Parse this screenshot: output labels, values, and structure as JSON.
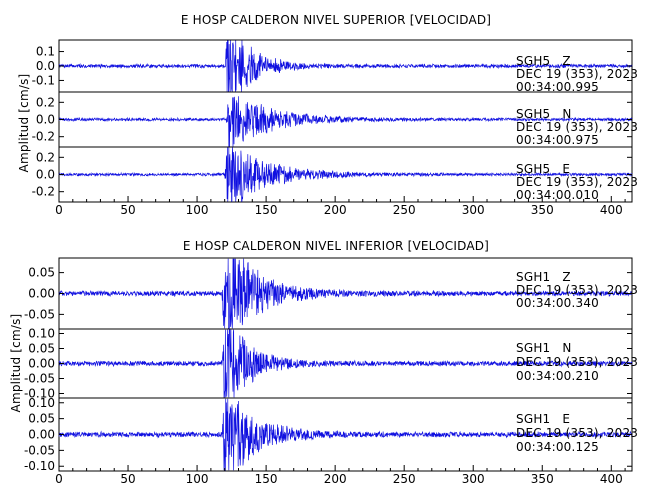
{
  "chart_data": [
    {
      "type": "line",
      "title": "E HOSP CALDERON NIVEL SUPERIOR [VELOCIDAD]",
      "ylabel": "Amplitud [cm/s]",
      "xlim": [
        0,
        415
      ],
      "xticks": [
        "0",
        "50",
        "100",
        "150",
        "200",
        "250",
        "300",
        "350",
        "400"
      ],
      "series": [
        {
          "name": "SGH5 Z",
          "station": "SGH5",
          "channel": "Z",
          "date": "DEC 19 (353), 2023",
          "time": "00:34:00.995",
          "ylim": [
            -0.18,
            0.18
          ],
          "yticks": [
            "0.1",
            "0.0",
            "-0.1"
          ],
          "ytick_values": [
            0.1,
            0.0,
            -0.1
          ],
          "arrival": 120,
          "peak": 0.17,
          "noise": 0.006,
          "decay": 18
        },
        {
          "name": "SGH5 N",
          "station": "SGH5",
          "channel": "N",
          "date": "DEC 19 (353), 2023",
          "time": "00:34:00.975",
          "ylim": [
            -0.32,
            0.32
          ],
          "yticks": [
            "0.2",
            "0.0",
            "-0.2"
          ],
          "ytick_values": [
            0.2,
            0.0,
            -0.2
          ],
          "arrival": 121,
          "peak": 0.2,
          "noise": 0.008,
          "decay": 30
        },
        {
          "name": "SGH5 E",
          "station": "SGH5",
          "channel": "E",
          "date": "DEC 19 (353), 2023",
          "time": "00:34:00.010",
          "ylim": [
            -0.32,
            0.32
          ],
          "yticks": [
            "0.2",
            "0.0",
            "-0.2"
          ],
          "ytick_values": [
            0.2,
            0.0,
            -0.2
          ],
          "arrival": 120,
          "peak": 0.24,
          "noise": 0.008,
          "decay": 28
        }
      ]
    },
    {
      "type": "line",
      "title": "E HOSP CALDERON NIVEL INFERIOR [VELOCIDAD]",
      "ylabel": "Amplitud [cm/s]",
      "xlim": [
        0,
        415
      ],
      "xticks": [
        "0",
        "50",
        "100",
        "150",
        "200",
        "250",
        "300",
        "350",
        "400"
      ],
      "series": [
        {
          "name": "SGH1 Z",
          "station": "SGH1",
          "channel": "Z",
          "date": "DEC 19 (353), 2023",
          "time": "00:34:00.340",
          "ylim": [
            -0.085,
            0.085
          ],
          "yticks": [
            "0.05",
            "0.00",
            "-0.05"
          ],
          "ytick_values": [
            0.05,
            0.0,
            -0.05
          ],
          "arrival": 118,
          "peak": 0.08,
          "noise": 0.003,
          "decay": 22
        },
        {
          "name": "SGH1 N",
          "station": "SGH1",
          "channel": "N",
          "date": "DEC 19 (353), 2023",
          "time": "00:34:00.210",
          "ylim": [
            -0.115,
            0.115
          ],
          "yticks": [
            "0.10",
            "0.05",
            "0.00",
            "-0.05",
            "-0.10"
          ],
          "ytick_values": [
            0.1,
            0.05,
            0.0,
            -0.05,
            -0.1
          ],
          "arrival": 118,
          "peak": 0.11,
          "noise": 0.004,
          "decay": 16
        },
        {
          "name": "SGH1 E",
          "station": "SGH1",
          "channel": "E",
          "date": "DEC 19 (353), 2023",
          "time": "00:34:00.125",
          "ylim": [
            -0.115,
            0.115
          ],
          "yticks": [
            "0.10",
            "0.05",
            "0.00",
            "-0.05",
            "-0.10"
          ],
          "ytick_values": [
            0.1,
            0.05,
            0.0,
            -0.05,
            -0.1
          ],
          "arrival": 118,
          "peak": 0.1,
          "noise": 0.004,
          "decay": 20
        }
      ]
    }
  ]
}
